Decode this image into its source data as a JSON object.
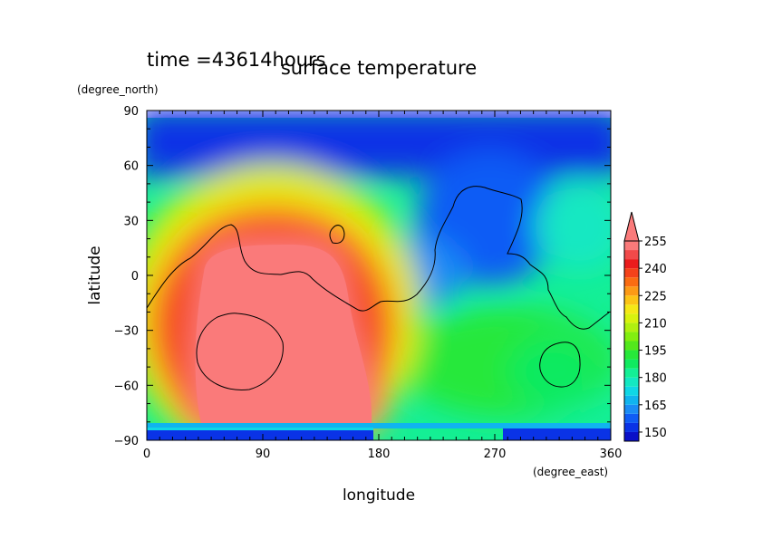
{
  "chart_data": {
    "type": "heatmap",
    "title": "surface temperature",
    "time_label": "time =43614hours",
    "xlabel": "longitude",
    "ylabel": "latitude",
    "x_units": "(degree_east)",
    "y_units": "(degree_north)",
    "xlim": [
      0,
      360
    ],
    "ylim": [
      -90,
      90
    ],
    "x_ticks": [
      "0",
      "90",
      "180",
      "270",
      "360"
    ],
    "y_ticks": [
      "90",
      "60",
      "30",
      "0",
      "−30",
      "−60",
      "−90"
    ],
    "colorbar": {
      "levels": [
        145,
        150,
        155,
        160,
        165,
        170,
        175,
        180,
        185,
        190,
        195,
        200,
        205,
        210,
        215,
        220,
        225,
        230,
        235,
        240,
        245,
        250,
        255
      ],
      "colors": [
        "#0a10c8",
        "#0a33e6",
        "#0f5cf5",
        "#1a8cf5",
        "#10b4ef",
        "#0fd7e6",
        "#13e8c2",
        "#14ef96",
        "#10ea60",
        "#27e83a",
        "#53e81c",
        "#82ee10",
        "#b0f010",
        "#d8f20e",
        "#f5e816",
        "#fcc416",
        "#fc9a16",
        "#fa6c12",
        "#f4421a",
        "#ea1c1c",
        "#f14a4a",
        "#fa7a7a"
      ],
      "tick_labels": [
        "150",
        "165",
        "180",
        "195",
        "210",
        "225",
        "240",
        "255"
      ],
      "overflow_color": "#fa7a7a"
    },
    "grid": false,
    "legend": "colorbar-right"
  }
}
